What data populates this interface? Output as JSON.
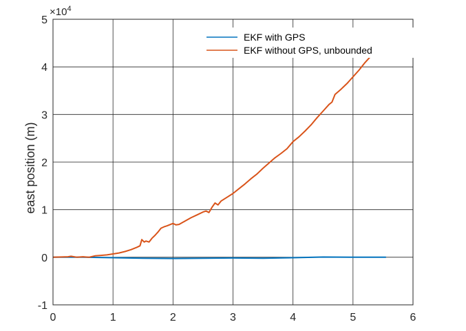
{
  "chart_data": {
    "type": "line",
    "title": "",
    "xlabel": "",
    "ylabel": "east position (m)",
    "xlim": [
      0,
      6
    ],
    "ylim": [
      -10000,
      50000
    ],
    "xticks": [
      0,
      1,
      2,
      3,
      4,
      5,
      6
    ],
    "xtick_labels": [
      "0",
      "1",
      "2",
      "3",
      "4",
      "5",
      "6"
    ],
    "yticks": [
      -10000,
      0,
      10000,
      20000,
      30000,
      40000,
      50000
    ],
    "ytick_labels": [
      "-1",
      "0",
      "1",
      "2",
      "3",
      "4",
      "5"
    ],
    "y_exponent_base": "×10",
    "y_exponent_power": "4",
    "grid": true,
    "legend_position": "top-right",
    "series": [
      {
        "name": "EKF with GPS",
        "color": "#0072BD",
        "x": [
          0,
          0.5,
          1.0,
          1.5,
          2.0,
          2.5,
          3.0,
          3.5,
          4.0,
          4.5,
          5.0,
          5.55
        ],
        "y": [
          0,
          0,
          -100,
          -200,
          -250,
          -200,
          -150,
          -200,
          -100,
          50,
          0,
          0
        ]
      },
      {
        "name": "EKF without GPS, unbounded",
        "color": "#D95319",
        "x": [
          0,
          0.25,
          0.3,
          0.4,
          0.5,
          0.6,
          0.7,
          0.8,
          0.9,
          1.0,
          1.1,
          1.2,
          1.3,
          1.4,
          1.45,
          1.48,
          1.52,
          1.55,
          1.6,
          1.65,
          1.7,
          1.75,
          1.8,
          1.85,
          1.9,
          2.0,
          2.05,
          2.1,
          2.2,
          2.3,
          2.4,
          2.5,
          2.55,
          2.6,
          2.65,
          2.7,
          2.75,
          2.8,
          2.9,
          3.0,
          3.1,
          3.2,
          3.3,
          3.4,
          3.5,
          3.6,
          3.7,
          3.8,
          3.9,
          4.0,
          4.1,
          4.2,
          4.3,
          4.4,
          4.5,
          4.6,
          4.65,
          4.7,
          4.8,
          4.9,
          5.0,
          5.1,
          5.2,
          5.28
        ],
        "y": [
          0,
          100,
          200,
          0,
          100,
          0,
          300,
          400,
          500,
          700,
          900,
          1200,
          1600,
          2100,
          2400,
          3700,
          3200,
          3400,
          3200,
          4000,
          4600,
          5300,
          6100,
          6400,
          6600,
          7100,
          6800,
          6900,
          7600,
          8300,
          8900,
          9500,
          9700,
          9400,
          10500,
          11400,
          11000,
          11800,
          12600,
          13400,
          14400,
          15400,
          16500,
          17500,
          18700,
          19800,
          20900,
          21800,
          22800,
          24300,
          25300,
          26500,
          27800,
          29300,
          30700,
          32100,
          32600,
          34200,
          35300,
          36500,
          37900,
          39300,
          40900,
          42000
        ]
      }
    ]
  }
}
